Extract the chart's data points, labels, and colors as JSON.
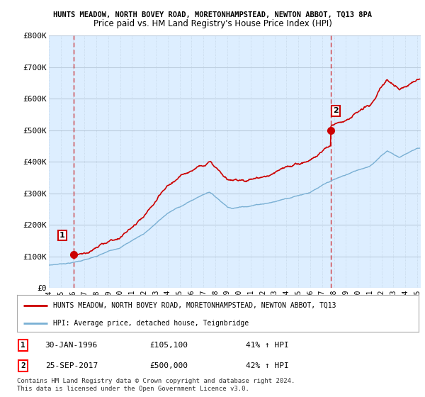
{
  "title1": "HUNTS MEADOW, NORTH BOVEY ROAD, MORETONHAMPSTEAD, NEWTON ABBOT, TQ13 8PA",
  "title2": "Price paid vs. HM Land Registry's House Price Index (HPI)",
  "ylabel_ticks": [
    "£0",
    "£100K",
    "£200K",
    "£300K",
    "£400K",
    "£500K",
    "£600K",
    "£700K",
    "£800K"
  ],
  "ytick_values": [
    0,
    100000,
    200000,
    300000,
    400000,
    500000,
    600000,
    700000,
    800000
  ],
  "ylim": [
    0,
    800000
  ],
  "xlim_start": 1994.3,
  "xlim_end": 2025.3,
  "xtick_values": [
    1994,
    1995,
    1996,
    1997,
    1998,
    1999,
    2000,
    2001,
    2002,
    2003,
    2004,
    2005,
    2006,
    2007,
    2008,
    2009,
    2010,
    2011,
    2012,
    2013,
    2014,
    2015,
    2016,
    2017,
    2018,
    2019,
    2020,
    2021,
    2022,
    2023,
    2024,
    2025
  ],
  "property_color": "#cc0000",
  "hpi_color": "#7ab0d4",
  "bg_color": "#ddeeff",
  "grid_color": "#bbccdd",
  "sale1_x": 1996.08,
  "sale1_y": 105100,
  "sale2_x": 2017.73,
  "sale2_y": 500000,
  "legend_property": "HUNTS MEADOW, NORTH BOVEY ROAD, MORETONHAMPSTEAD, NEWTON ABBOT, TQ13",
  "legend_hpi": "HPI: Average price, detached house, Teignbridge",
  "sale1_date": "30-JAN-1996",
  "sale1_price": "£105,100",
  "sale1_hpi": "41% ↑ HPI",
  "sale2_date": "25-SEP-2017",
  "sale2_price": "£500,000",
  "sale2_hpi": "42% ↑ HPI",
  "footer": "Contains HM Land Registry data © Crown copyright and database right 2024.\nThis data is licensed under the Open Government Licence v3.0."
}
